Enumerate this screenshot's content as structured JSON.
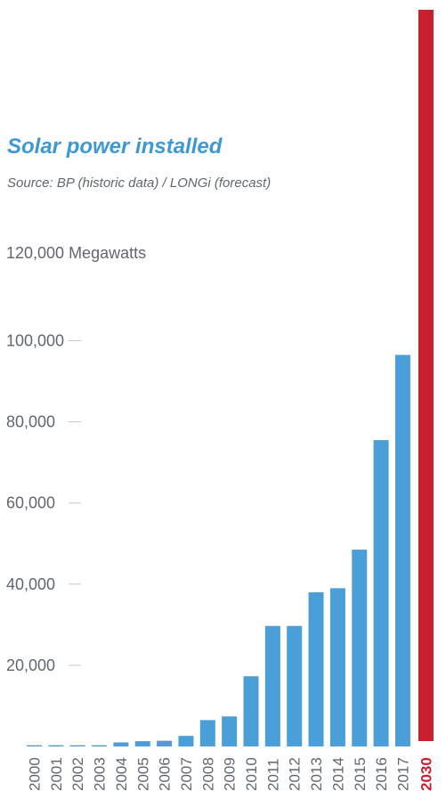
{
  "chart_data": {
    "type": "bar",
    "title": "Solar power installed",
    "subtitle": "Source: BP (historic data) / LONGi (forecast)",
    "ylabel": "Megawatts",
    "top_tick_label": "120,000 Megawatts",
    "ylim": [
      0,
      120000
    ],
    "yticks": [
      {
        "value": 20000,
        "label": "20,000"
      },
      {
        "value": 40000,
        "label": "40,000"
      },
      {
        "value": 60000,
        "label": "60,000"
      },
      {
        "value": 80000,
        "label": "80,000"
      },
      {
        "value": 100000,
        "label": "100,000"
      }
    ],
    "categories": [
      "2000",
      "2001",
      "2002",
      "2003",
      "2004",
      "2005",
      "2006",
      "2007",
      "2008",
      "2009",
      "2010",
      "2011",
      "2012",
      "2013",
      "2014",
      "2015",
      "2016",
      "2017"
    ],
    "values": [
      300,
      300,
      300,
      300,
      1000,
      1300,
      1400,
      2600,
      6500,
      7400,
      17300,
      29700,
      29700,
      38000,
      39000,
      48500,
      75500,
      96500
    ],
    "series_color": "#4a9fd8",
    "forecast": {
      "category": "2030",
      "note": "bar extends beyond the top of the chart",
      "value": 200000,
      "color": "#c8202f"
    },
    "colors": {
      "title": "#3d98d3",
      "text": "#5f6770",
      "tick_mark": "#c4c8cc"
    }
  }
}
